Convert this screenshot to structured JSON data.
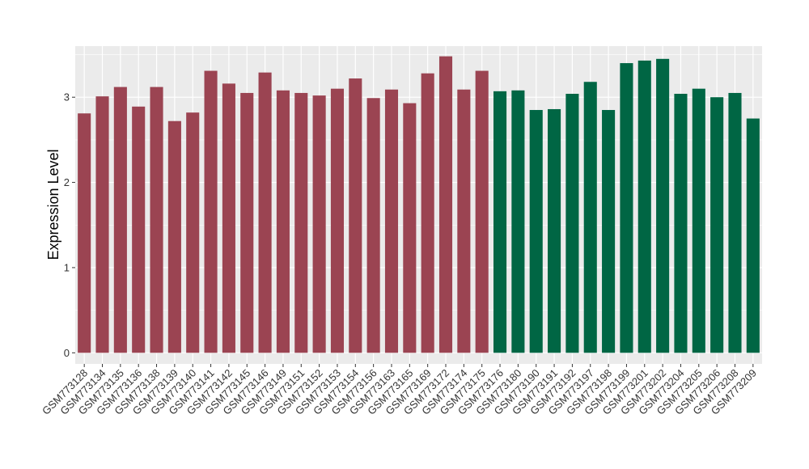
{
  "chart_data": {
    "type": "bar",
    "title": "",
    "xlabel": "",
    "ylabel": "Expression Level",
    "ylim": [
      -0.13,
      3.6
    ],
    "yticks": [
      0,
      1,
      2,
      3
    ],
    "grid": true,
    "background_color": "#EBEBEB",
    "grid_color": "#FFFFFF",
    "categories": [
      "GSM773128",
      "GSM773134",
      "GSM773135",
      "GSM773136",
      "GSM773138",
      "GSM773139",
      "GSM773140",
      "GSM773141",
      "GSM773142",
      "GSM773145",
      "GSM773146",
      "GSM773149",
      "GSM773151",
      "GSM773152",
      "GSM773153",
      "GSM773154",
      "GSM773156",
      "GSM773163",
      "GSM773165",
      "GSM773169",
      "GSM773172",
      "GSM773174",
      "GSM773175",
      "GSM773176",
      "GSM773180",
      "GSM773190",
      "GSM773191",
      "GSM773192",
      "GSM773197",
      "GSM773198",
      "GSM773199",
      "GSM773201",
      "GSM773202",
      "GSM773204",
      "GSM773205",
      "GSM773206",
      "GSM773208",
      "GSM773209"
    ],
    "values": [
      2.81,
      3.01,
      3.12,
      2.89,
      3.12,
      2.72,
      2.82,
      3.31,
      3.16,
      3.05,
      3.29,
      3.08,
      3.05,
      3.02,
      3.1,
      3.22,
      2.99,
      3.09,
      2.93,
      3.28,
      3.48,
      3.09,
      3.31,
      3.07,
      3.08,
      2.85,
      2.86,
      3.04,
      3.18,
      2.85,
      3.4,
      3.43,
      3.45,
      3.04,
      3.1,
      3.0,
      3.05,
      2.75
    ],
    "group_sizes": [
      23,
      15
    ],
    "colors": [
      "#9B4452",
      "#006644"
    ]
  }
}
